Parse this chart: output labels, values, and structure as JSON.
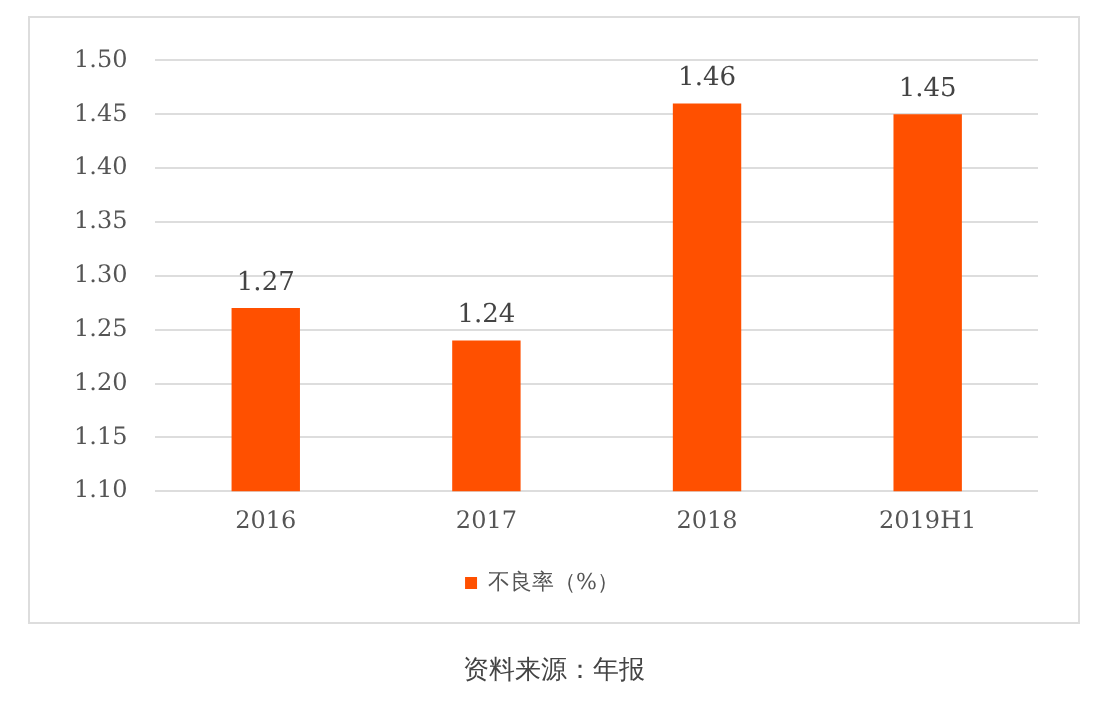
{
  "chart_data": {
    "type": "bar",
    "categories": [
      "2016",
      "2017",
      "2018",
      "2019H1"
    ],
    "series": [
      {
        "name": "不良率（%）",
        "color": "#ff5000",
        "values": [
          1.27,
          1.24,
          1.46,
          1.45
        ]
      }
    ],
    "ylim": [
      1.1,
      1.5
    ],
    "yticks": [
      {
        "value": 1.1,
        "label": "1.10"
      },
      {
        "value": 1.15,
        "label": "1.15"
      },
      {
        "value": 1.2,
        "label": "1.20"
      },
      {
        "value": 1.25,
        "label": "1.25"
      },
      {
        "value": 1.3,
        "label": "1.30"
      },
      {
        "value": 1.35,
        "label": "1.35"
      },
      {
        "value": 1.4,
        "label": "1.40"
      },
      {
        "value": 1.45,
        "label": "1.45"
      },
      {
        "value": 1.5,
        "label": "1.50"
      }
    ],
    "grid": "y",
    "legend": "bottom",
    "data_labels": true,
    "annotations": [
      "资料来源：年报"
    ]
  }
}
